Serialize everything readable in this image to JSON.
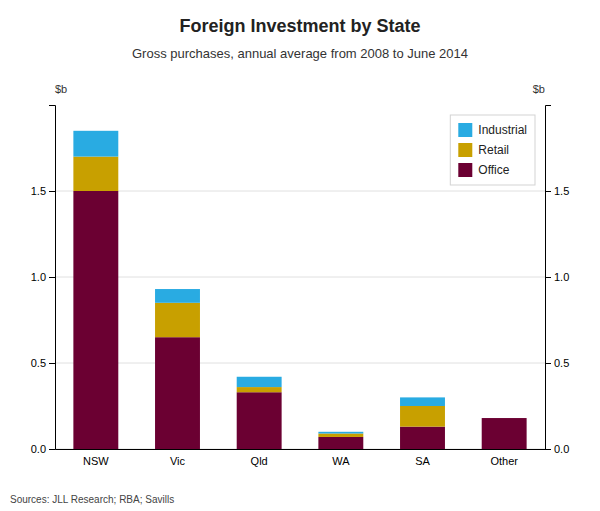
{
  "chart_data": {
    "type": "bar",
    "stacked": true,
    "title": "Foreign Investment by State",
    "subtitle": "Gross purchases, annual average from 2008 to June 2014",
    "ylabel": "$b",
    "y2label": "$b",
    "source": "Sources:  JLL Research; RBA; Savills",
    "categories": [
      "NSW",
      "Vic",
      "Qld",
      "WA",
      "SA",
      "Other"
    ],
    "series": [
      {
        "name": "Office",
        "color": "#6B0032",
        "values": [
          1.5,
          0.65,
          0.33,
          0.07,
          0.13,
          0.18
        ]
      },
      {
        "name": "Retail",
        "color": "#C8A000",
        "values": [
          0.2,
          0.2,
          0.03,
          0.02,
          0.12,
          0.0
        ]
      },
      {
        "name": "Industrial",
        "color": "#29ABE2",
        "values": [
          0.15,
          0.08,
          0.06,
          0.01,
          0.05,
          0.0
        ]
      }
    ],
    "ylim": [
      0,
      2.0
    ],
    "yticks": [
      {
        "value": 0.0,
        "label": "0.0"
      },
      0.5,
      {
        "value": 1.0,
        "label": "1.0"
      },
      1.5
    ],
    "y2lim": [
      0,
      2.0
    ],
    "y2ticks": [
      {
        "value": 0.0,
        "label": "0.0"
      },
      0.5,
      {
        "value": 1.0,
        "label": "1.0"
      },
      1.5
    ],
    "grid": true,
    "legend": "upper right"
  }
}
